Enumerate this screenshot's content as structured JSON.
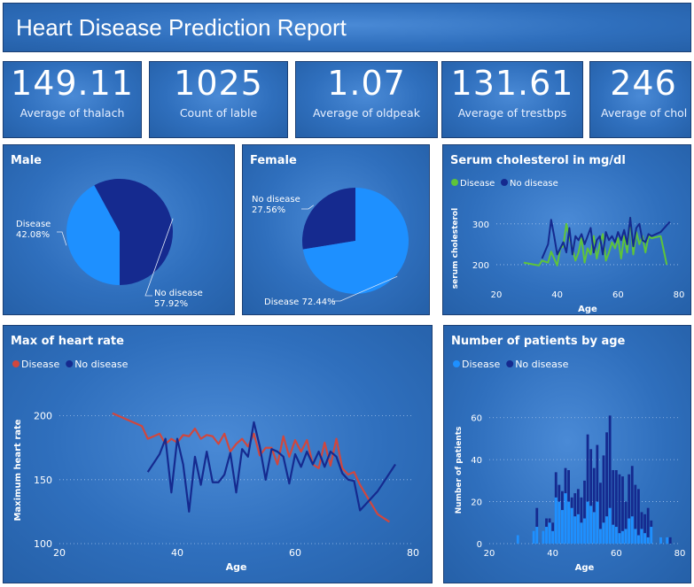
{
  "header": {
    "title": "Heart Disease Prediction Report"
  },
  "kpis": [
    {
      "value": "149.11",
      "label": "Average of thalach"
    },
    {
      "value": "1025",
      "label": "Count of lable"
    },
    {
      "value": "1.07",
      "label": "Average of oldpeak"
    },
    {
      "value": "131.61",
      "label": "Average of trestbps"
    },
    {
      "value": "246",
      "label": "Average of chol"
    }
  ],
  "colors": {
    "disease_light": "#1e90ff",
    "no_disease_dark": "#152a8f",
    "disease_green": "#5ec43a",
    "disease_red": "#d0473e"
  },
  "chart_data": [
    {
      "type": "pie",
      "title": "Male",
      "slices": [
        {
          "label": "Disease",
          "pct_label": "42.08%",
          "value": 42.08,
          "color": "#1e90ff"
        },
        {
          "label": "No disease",
          "pct_label": "57.92%",
          "value": 57.92,
          "color": "#152a8f"
        }
      ]
    },
    {
      "type": "pie",
      "title": "Female",
      "slices": [
        {
          "label": "No disease",
          "pct_label": "27.56%",
          "value": 27.56,
          "color": "#152a8f"
        },
        {
          "label": "Disease",
          "pct_label": "72.44%",
          "value": 72.44,
          "color": "#1e90ff"
        }
      ]
    },
    {
      "type": "line",
      "title": "Serum cholesterol in mg/dl",
      "xlabel": "Age",
      "ylabel": "serum cholesterol",
      "xlim": [
        20,
        80
      ],
      "ylim": [
        150,
        330
      ],
      "xticks": [
        20,
        40,
        60,
        80
      ],
      "yticks": [
        200,
        300
      ],
      "legend": "top-left",
      "series": [
        {
          "name": "Disease",
          "color": "#5ec43a",
          "x": [
            29,
            34,
            35,
            37,
            38,
            39,
            40,
            41,
            42,
            43,
            44,
            45,
            46,
            47,
            48,
            49,
            50,
            51,
            52,
            53,
            54,
            55,
            56,
            57,
            58,
            59,
            60,
            61,
            62,
            63,
            64,
            65,
            66,
            67,
            68,
            69,
            70,
            71,
            74,
            76
          ],
          "y": [
            205,
            198,
            210,
            205,
            232,
            215,
            198,
            240,
            245,
            300,
            265,
            240,
            210,
            230,
            265,
            205,
            240,
            225,
            270,
            215,
            250,
            275,
            210,
            230,
            255,
            240,
            265,
            215,
            270,
            230,
            315,
            225,
            280,
            250,
            270,
            230,
            270,
            265,
            270,
            200
          ]
        },
        {
          "name": "No disease",
          "color": "#152a8f",
          "x": [
            35,
            37,
            38,
            39,
            40,
            41,
            42,
            43,
            44,
            45,
            46,
            47,
            48,
            49,
            50,
            51,
            52,
            53,
            54,
            55,
            56,
            57,
            58,
            59,
            60,
            61,
            62,
            63,
            64,
            65,
            66,
            67,
            68,
            69,
            70,
            71,
            74,
            77
          ],
          "y": [
            215,
            250,
            310,
            270,
            225,
            240,
            255,
            230,
            290,
            225,
            270,
            260,
            275,
            250,
            270,
            290,
            230,
            260,
            270,
            225,
            280,
            260,
            270,
            255,
            280,
            260,
            285,
            250,
            315,
            245,
            290,
            300,
            260,
            255,
            275,
            270,
            280,
            305
          ]
        }
      ]
    },
    {
      "type": "line",
      "title": "Max of heart rate",
      "xlabel": "Age",
      "ylabel": "Maximum heart rate",
      "xlim": [
        20,
        80
      ],
      "ylim": [
        100,
        215
      ],
      "xticks": [
        20,
        40,
        60,
        80
      ],
      "yticks": [
        100,
        150,
        200
      ],
      "legend": "top-left",
      "series": [
        {
          "name": "Disease",
          "color": "#d0473e",
          "x": [
            29,
            34,
            35,
            37,
            38,
            39,
            40,
            41,
            42,
            43,
            44,
            45,
            46,
            47,
            48,
            49,
            50,
            51,
            52,
            53,
            54,
            55,
            56,
            57,
            58,
            59,
            60,
            61,
            62,
            63,
            64,
            65,
            66,
            67,
            68,
            69,
            70,
            71,
            74,
            76
          ],
          "y": [
            202,
            192,
            182,
            186,
            178,
            182,
            179,
            185,
            184,
            190,
            182,
            185,
            184,
            178,
            186,
            172,
            178,
            182,
            176,
            186,
            169,
            175,
            175,
            162,
            184,
            168,
            181,
            172,
            181,
            162,
            159,
            179,
            161,
            182,
            159,
            154,
            156,
            146,
            123,
            117
          ]
        },
        {
          "name": "No disease",
          "color": "#152a8f",
          "x": [
            35,
            37,
            38,
            39,
            40,
            41,
            42,
            43,
            44,
            45,
            46,
            47,
            48,
            49,
            50,
            51,
            52,
            53,
            54,
            55,
            56,
            57,
            58,
            59,
            60,
            61,
            62,
            63,
            64,
            65,
            66,
            67,
            68,
            69,
            70,
            71,
            74,
            77
          ],
          "y": [
            156,
            170,
            182,
            140,
            182,
            162,
            125,
            168,
            146,
            172,
            148,
            148,
            154,
            171,
            140,
            174,
            168,
            195,
            176,
            150,
            174,
            172,
            168,
            147,
            170,
            160,
            172,
            162,
            172,
            160,
            172,
            168,
            155,
            150,
            149,
            126,
            141,
            162
          ]
        }
      ]
    },
    {
      "type": "bar",
      "title": "Number of patients by age",
      "xlabel": "Age",
      "ylabel": "Number of patients",
      "xlim": [
        20,
        80
      ],
      "ylim": [
        0,
        70
      ],
      "xticks": [
        20,
        40,
        60,
        80
      ],
      "yticks": [
        0,
        20,
        40,
        60
      ],
      "legend": "top-left",
      "categories": [
        29,
        34,
        35,
        37,
        38,
        39,
        40,
        41,
        42,
        43,
        44,
        45,
        46,
        47,
        48,
        49,
        50,
        51,
        52,
        53,
        54,
        55,
        56,
        57,
        58,
        59,
        60,
        61,
        62,
        63,
        64,
        65,
        66,
        67,
        68,
        69,
        70,
        71,
        74,
        76,
        77
      ],
      "series": [
        {
          "name": "Disease",
          "color": "#1e90ff",
          "values": [
            4,
            6,
            8,
            6,
            8,
            10,
            6,
            22,
            20,
            16,
            24,
            20,
            17,
            13,
            14,
            10,
            12,
            20,
            18,
            15,
            20,
            7,
            10,
            13,
            17,
            9,
            8,
            5,
            6,
            7,
            12,
            13,
            7,
            4,
            7,
            5,
            3,
            8,
            3,
            3,
            0
          ]
        },
        {
          "name": "No disease",
          "color": "#152a8f",
          "values": [
            0,
            0,
            9,
            0,
            4,
            2,
            4,
            12,
            8,
            9,
            12,
            15,
            5,
            11,
            12,
            12,
            18,
            32,
            27,
            21,
            27,
            22,
            32,
            40,
            44,
            26,
            27,
            28,
            26,
            13,
            21,
            24,
            21,
            22,
            8,
            9,
            14,
            3,
            0,
            0,
            3
          ]
        }
      ]
    }
  ]
}
